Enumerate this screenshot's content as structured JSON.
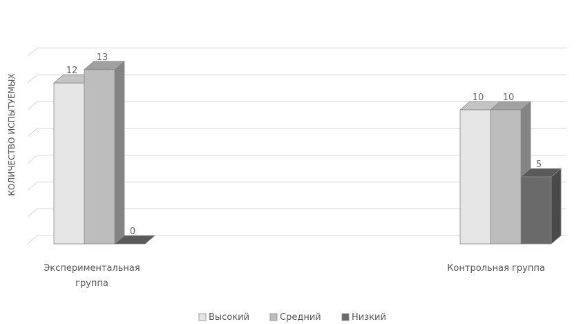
{
  "chart_data": {
    "type": "bar",
    "title": "",
    "ylabel": "КОЛИЧЕСТВО ИСПЫТУЕМЫХ",
    "xlabel": "",
    "categories": [
      "Экспериментальная группа",
      "Контрольная группа"
    ],
    "category_lines": [
      [
        "Экспериментальная",
        "группа"
      ],
      [
        "Контрольная группа"
      ]
    ],
    "series": [
      {
        "name": "Высокий",
        "values": [
          12,
          10
        ],
        "color": "#e6e6e6"
      },
      {
        "name": "Средний",
        "values": [
          13,
          10
        ],
        "color": "#bdbdbd"
      },
      {
        "name": "Низкий",
        "values": [
          0,
          5
        ],
        "color": "#6a6a6a"
      }
    ],
    "ylim": [
      0,
      14
    ],
    "grid": true,
    "style": "3d-clustered",
    "legend_position": "bottom"
  }
}
